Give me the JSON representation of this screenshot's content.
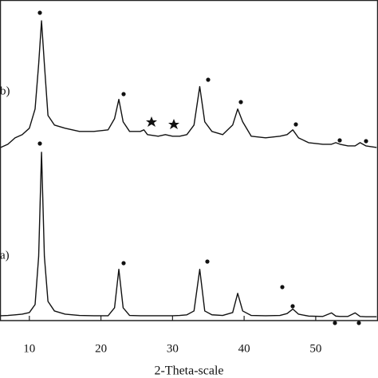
{
  "chart_data": {
    "type": "line",
    "x_label": "2-Theta-scale",
    "x": [
      6,
      7,
      8,
      9,
      10,
      10.8,
      11.3,
      11.7,
      12.1,
      12.6,
      13.5,
      15,
      17,
      19,
      21,
      21.9,
      22.5,
      23.1,
      24,
      25.5,
      26,
      26.5,
      28,
      29,
      30,
      31,
      32,
      33,
      33.8,
      34.5,
      35.5,
      37,
      38.4,
      39.1,
      39.8,
      41,
      43,
      45,
      46,
      46.8,
      47.6,
      49,
      51,
      52.2,
      52.8,
      53.4,
      54.5,
      55.5,
      56.2,
      57,
      58.5
    ],
    "series": [
      {
        "name": "a)",
        "color": "#111111",
        "values": [
          1.5,
          1.6,
          1.8,
          2,
          2.5,
          5,
          20,
          52.5,
          20,
          6,
          3,
          2,
          1.6,
          1.5,
          1.5,
          4,
          16,
          4,
          1.6,
          1.5,
          1.5,
          1.5,
          1.5,
          1.5,
          1.5,
          1.6,
          1.8,
          3,
          16,
          3,
          1.8,
          1.6,
          2.5,
          8.5,
          3,
          1.6,
          1.5,
          1.6,
          2.2,
          3.6,
          2,
          1.4,
          1.3,
          2.4,
          1.4,
          1.3,
          1.3,
          2.4,
          1.3,
          1.2,
          1.2
        ]
      },
      {
        "name": "b)",
        "color": "#111111",
        "values": [
          54,
          55,
          57,
          58,
          60,
          66,
          80,
          93.5,
          80,
          64,
          61,
          60,
          59,
          59,
          59.5,
          63,
          69,
          62,
          59,
          59,
          59.5,
          58,
          57.5,
          58,
          57.5,
          57.5,
          58,
          61,
          73,
          62,
          59,
          58,
          61,
          66,
          62,
          57.5,
          57,
          57.5,
          58,
          59.5,
          57,
          55.5,
          55,
          55,
          55.5,
          55,
          54.5,
          54.5,
          55.5,
          54.5,
          54
        ]
      }
    ],
    "xlim": [
      5.9,
      58.7
    ],
    "xticks": [
      10,
      20,
      30,
      40,
      50
    ],
    "ylim": [
      0,
      100
    ]
  }
}
